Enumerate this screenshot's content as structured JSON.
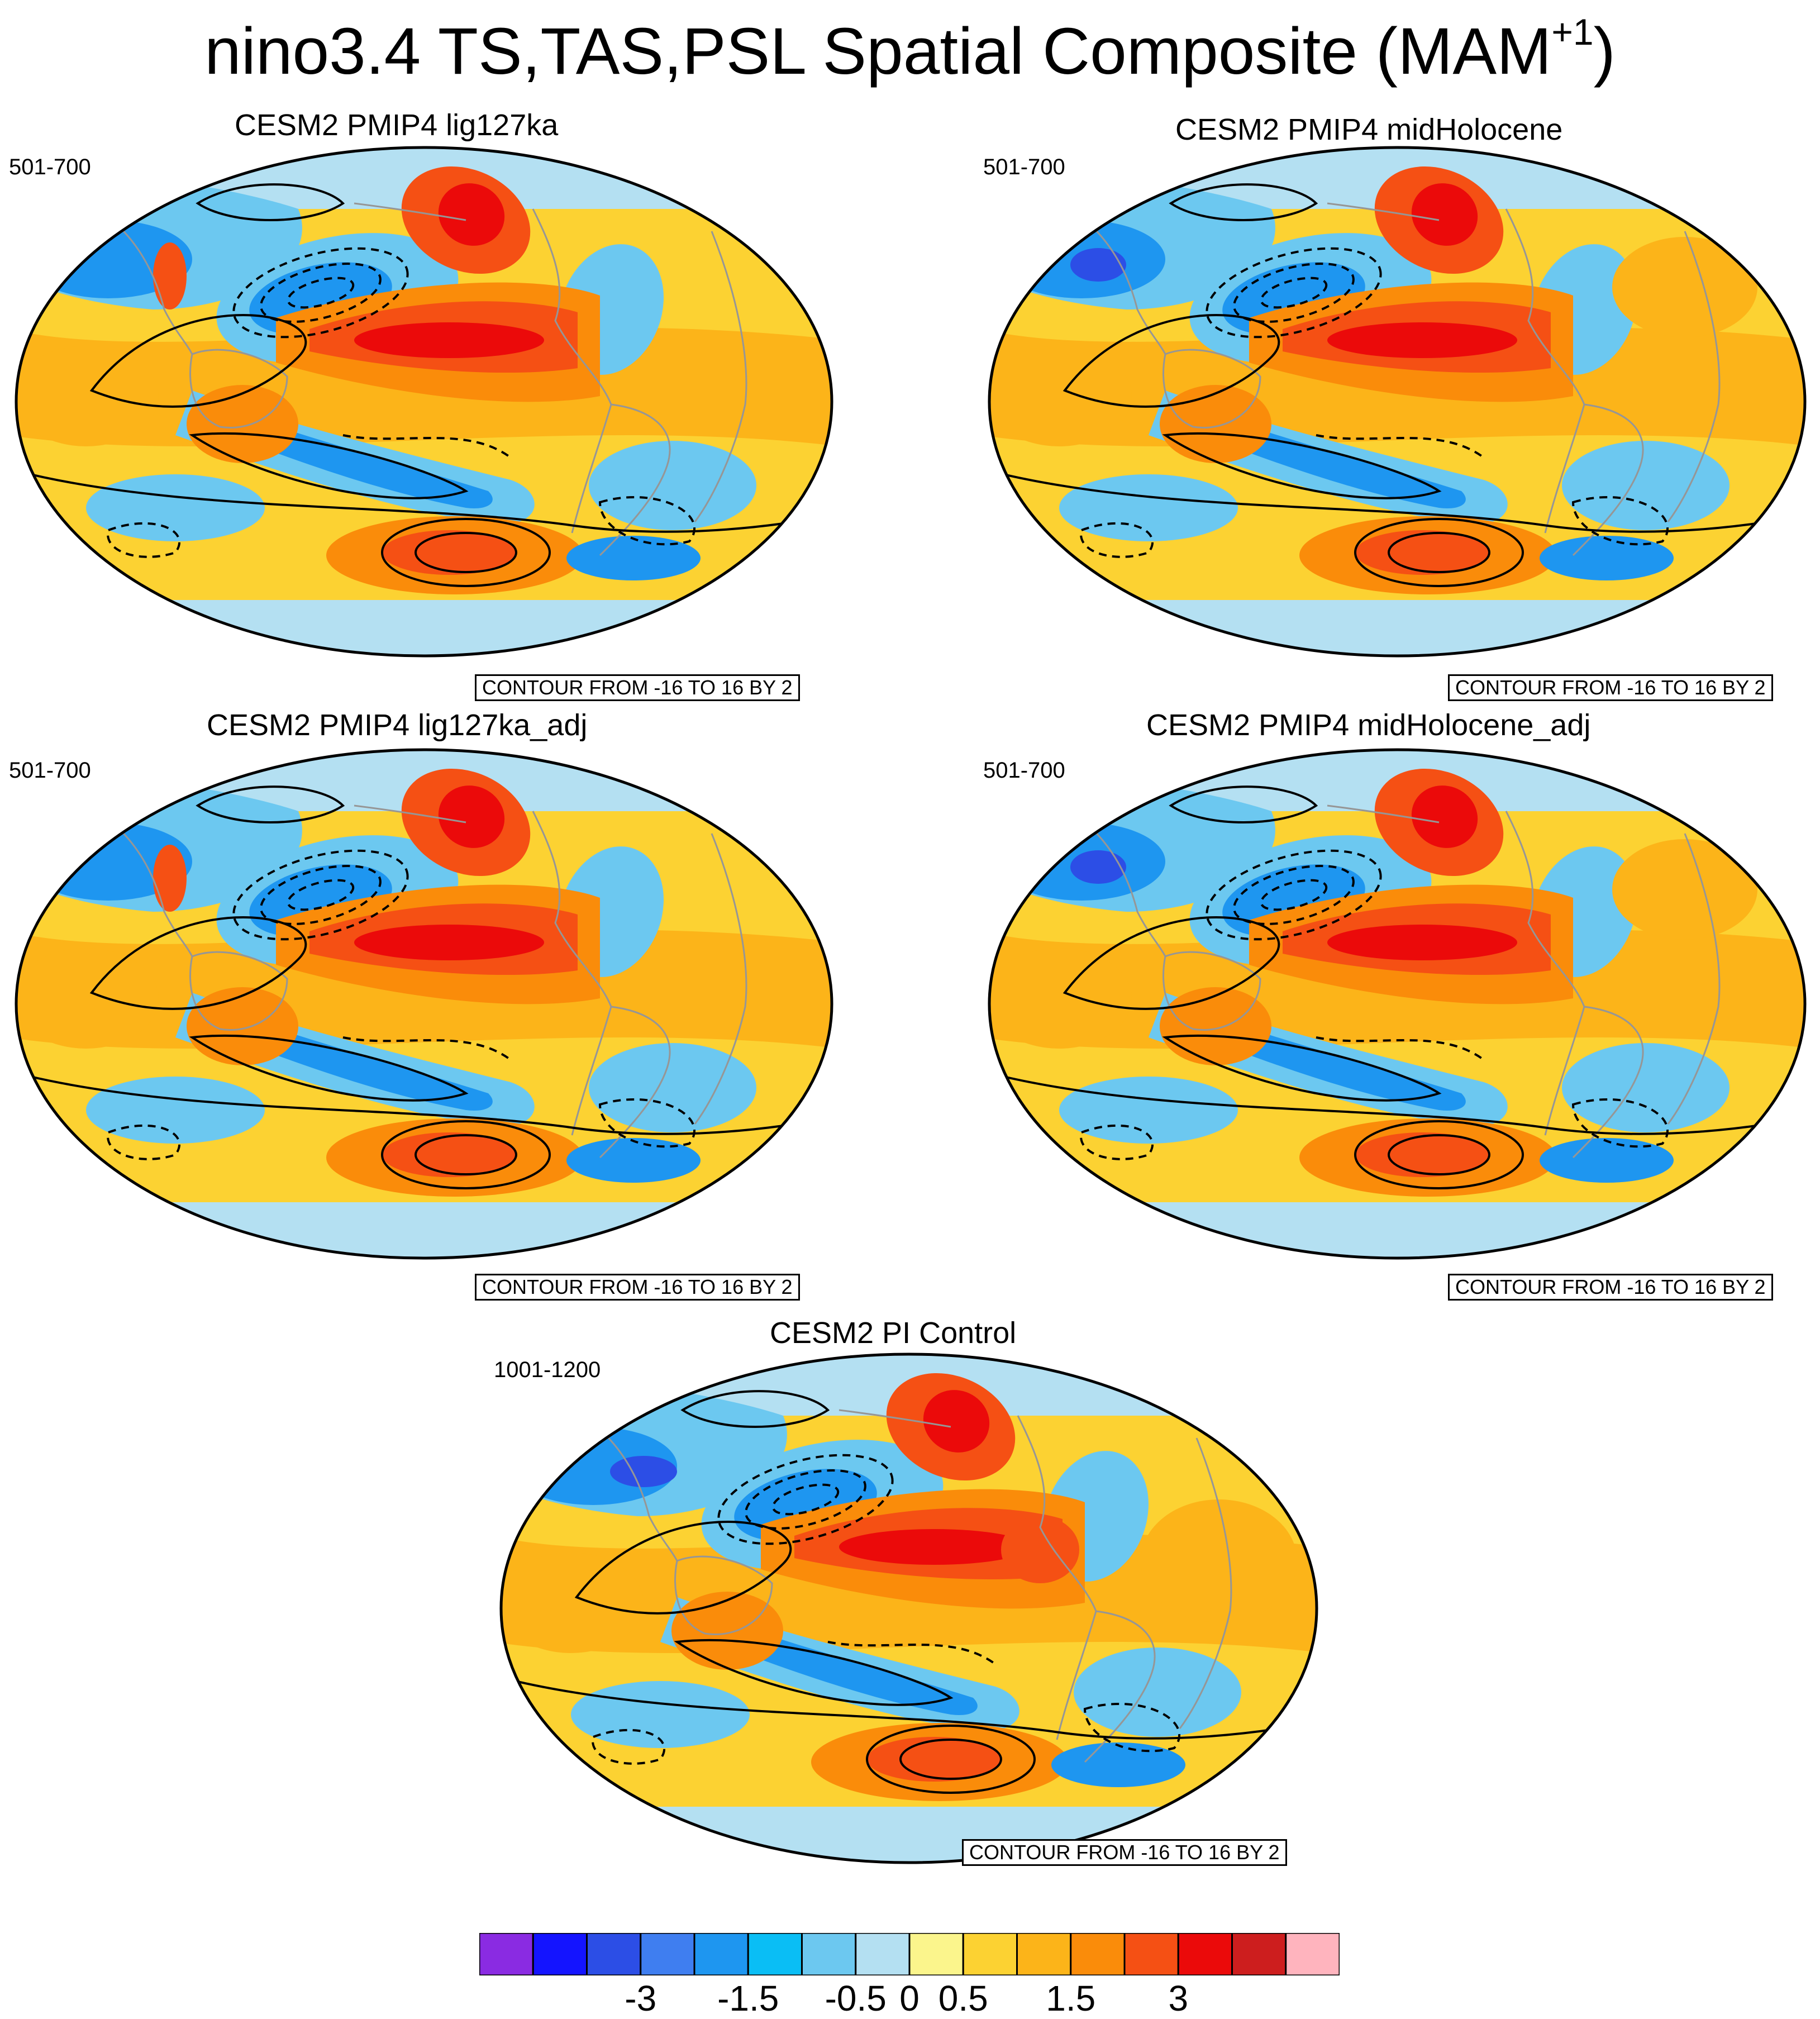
{
  "title": "nino3.4 TS,TAS,PSL Spatial Composite (MAM",
  "title_superscript": "+1",
  "title_close": ")",
  "panels": [
    {
      "title": "CESM2 PMIP4 lig127ka",
      "years": "501-700",
      "contour_note": "CONTOUR FROM -16 TO 16 BY 2"
    },
    {
      "title": "CESM2 PMIP4 midHolocene",
      "years": "501-700",
      "contour_note": "CONTOUR FROM -16 TO 16 BY 2"
    },
    {
      "title": "CESM2 PMIP4 lig127ka_adj",
      "years": "501-700",
      "contour_note": "CONTOUR FROM -16 TO 16 BY 2"
    },
    {
      "title": "CESM2 PMIP4 midHolocene_adj",
      "years": "501-700",
      "contour_note": "CONTOUR FROM -16 TO 16 BY 2"
    },
    {
      "title": "CESM2 PI Control",
      "years": "1001-1200",
      "contour_note": "CONTOUR FROM -16 TO 16 BY 2"
    }
  ],
  "colorbar": {
    "colors": [
      "#8a2be2",
      "#1414ff",
      "#2c4ee6",
      "#3f7ef0",
      "#1e96f0",
      "#0abef5",
      "#6cc8f0",
      "#b4e0f2",
      "#fbf58c",
      "#fcd232",
      "#fcb419",
      "#fa8c0a",
      "#f55014",
      "#eb0a0a",
      "#cd1e1e",
      "#ffb4be"
    ],
    "labels": [
      {
        "text": "-3",
        "edge": 3
      },
      {
        "text": "-1.5",
        "edge": 5
      },
      {
        "text": "-0.5",
        "edge": 7
      },
      {
        "text": "0",
        "edge": 8
      },
      {
        "text": "0.5",
        "edge": 9
      },
      {
        "text": "1.5",
        "edge": 11
      },
      {
        "text": "3",
        "edge": 13
      }
    ]
  },
  "map_colors": {
    "ocean_neutral": "#b4e0f2",
    "warm_weak": "#fbf58c",
    "warm": "#fcd232",
    "warm_mid": "#fcb419",
    "warm_strong": "#fa8c0a",
    "hot": "#f55014",
    "hot_core": "#eb0a0a",
    "cold_weak": "#6cc8f0",
    "cold": "#1e96f0",
    "cold_strong": "#2c4ee6",
    "coastline": "#969696",
    "contour": "#000000"
  }
}
